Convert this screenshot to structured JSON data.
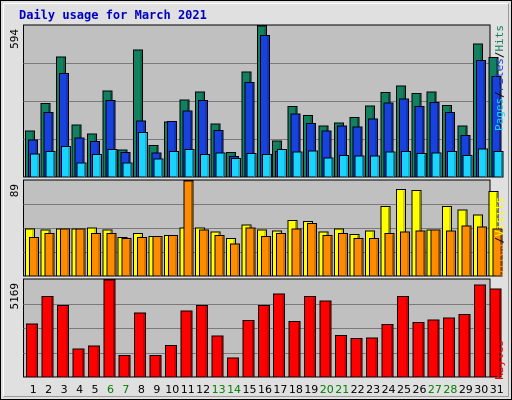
{
  "title": "Daily usage for March 2021",
  "colors": {
    "pages": "#13805f",
    "files": "#1742e0",
    "hits": "#18d4ff",
    "visits": "#ffff00",
    "sites": "#ff8c00",
    "kbytes": "#ff0000",
    "panel_bg": "#c0c0c0",
    "weekend": "#008000",
    "weekday": "#000000"
  },
  "chart_data": [
    {
      "type": "bar",
      "panel": "hits-files-pages",
      "max_label": "594",
      "legend": [
        "Pages",
        "/",
        "Files",
        "/",
        "Hits"
      ],
      "categories": [
        "1",
        "2",
        "3",
        "4",
        "5",
        "6",
        "7",
        "8",
        "9",
        "10",
        "11",
        "12",
        "13",
        "14",
        "15",
        "16",
        "17",
        "18",
        "19",
        "20",
        "21",
        "22",
        "23",
        "24",
        "25",
        "26",
        "27",
        "28",
        "29",
        "30",
        "31"
      ],
      "series": [
        {
          "name": "Hits",
          "values": [
            180,
            290,
            473,
            204,
            170,
            338,
            107,
            500,
            124,
            217,
            303,
            334,
            208,
            97,
            414,
            594,
            142,
            278,
            242,
            201,
            213,
            234,
            279,
            332,
            357,
            328,
            334,
            281,
            200,
            523,
            470
          ]
        },
        {
          "name": "Files",
          "values": [
            145,
            253,
            408,
            154,
            140,
            300,
            97,
            221,
            95,
            218,
            259,
            300,
            183,
            81,
            372,
            556,
            100,
            248,
            211,
            181,
            200,
            197,
            229,
            292,
            306,
            277,
            294,
            253,
            163,
            458,
            395
          ]
        },
        {
          "name": "Pages",
          "values": [
            91,
            101,
            120,
            55,
            88,
            108,
            55,
            176,
            71,
            100,
            108,
            89,
            94,
            73,
            93,
            88,
            108,
            99,
            102,
            75,
            84,
            83,
            83,
            99,
            100,
            92,
            94,
            101,
            84,
            111,
            101
          ]
        }
      ]
    },
    {
      "type": "bar",
      "panel": "visits-sites",
      "max_label": "89",
      "legend": [
        "Sites",
        "/",
        "Visits"
      ],
      "categories": [
        "1",
        "2",
        "3",
        "4",
        "5",
        "6",
        "7",
        "8",
        "9",
        "10",
        "11",
        "12",
        "13",
        "14",
        "15",
        "16",
        "17",
        "18",
        "19",
        "20",
        "21",
        "22",
        "23",
        "24",
        "25",
        "26",
        "27",
        "28",
        "29",
        "30",
        "31"
      ],
      "series": [
        {
          "name": "Visits",
          "values": [
            44,
            43,
            44,
            44,
            45,
            43,
            36,
            40,
            37,
            38,
            45,
            45,
            41,
            35,
            48,
            43,
            42,
            52,
            51,
            41,
            44,
            39,
            42,
            65,
            81,
            80,
            43,
            65,
            62,
            57,
            79
          ]
        },
        {
          "name": "Sites",
          "values": [
            36,
            40,
            44,
            44,
            40,
            40,
            35,
            36,
            37,
            38,
            89,
            43,
            38,
            30,
            45,
            37,
            40,
            44,
            49,
            38,
            40,
            35,
            35,
            40,
            41,
            42,
            43,
            42,
            47,
            46,
            44
          ]
        }
      ]
    },
    {
      "type": "bar",
      "panel": "kbytes",
      "max_label": "5169",
      "legend": [
        "KBytes"
      ],
      "categories": [
        "1",
        "2",
        "3",
        "4",
        "5",
        "6",
        "7",
        "8",
        "9",
        "10",
        "11",
        "12",
        "13",
        "14",
        "15",
        "16",
        "17",
        "18",
        "19",
        "20",
        "21",
        "22",
        "23",
        "24",
        "25",
        "26",
        "27",
        "28",
        "29",
        "30",
        "31"
      ],
      "series": [
        {
          "name": "KBytes",
          "values": [
            2830,
            4280,
            3810,
            1500,
            1650,
            5169,
            1150,
            3400,
            1140,
            1690,
            3530,
            3800,
            2180,
            1020,
            3010,
            3810,
            4430,
            2970,
            4290,
            4040,
            2220,
            2050,
            2090,
            2790,
            4300,
            2910,
            3030,
            3140,
            3330,
            4910,
            4690
          ]
        }
      ]
    }
  ],
  "days": [
    "1",
    "2",
    "3",
    "4",
    "5",
    "6",
    "7",
    "8",
    "9",
    "10",
    "11",
    "12",
    "13",
    "14",
    "15",
    "16",
    "17",
    "18",
    "19",
    "20",
    "21",
    "22",
    "23",
    "24",
    "25",
    "26",
    "27",
    "28",
    "29",
    "30",
    "31"
  ],
  "weekend_days": [
    6,
    7,
    13,
    14,
    20,
    21,
    27,
    28
  ]
}
